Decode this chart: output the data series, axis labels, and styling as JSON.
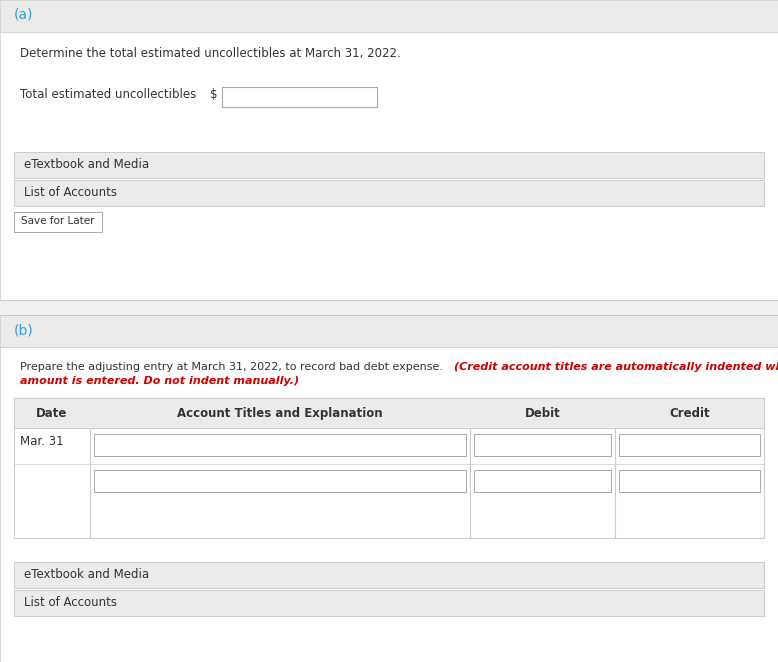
{
  "bg_color": "#f0f0f0",
  "white": "#ffffff",
  "light_gray": "#ebebeb",
  "border_color": "#cccccc",
  "dark_border": "#aaaaaa",
  "text_color": "#333333",
  "blue_color": "#3a9ad9",
  "red_color": "#cc0000",
  "section_a_label": "(a)",
  "section_b_label": "(b)",
  "part_a_instruction": "Determine the total estimated uncollectibles at March 31, 2022.",
  "part_a_field_label": "Total estimated uncollectibles",
  "dollar_sign": "$",
  "etextbook_label": "eTextbook and Media",
  "list_accounts_label": "List of Accounts",
  "save_later_label": "Save for Later",
  "part_b_instruction_black": "Prepare the adjusting entry at March 31, 2022, to record bad debt expense.",
  "part_b_instruction_red": "(Credit account titles are automatically indented when amount is entered. Do not indent manually.)",
  "part_b_red_line2": "amount is entered. Do not indent manually.)",
  "table_col_date": "Date",
  "table_col_account": "Account Titles and Explanation",
  "table_col_debit": "Debit",
  "table_col_credit": "Credit",
  "table_date_val": "Mar. 31",
  "fig_width": 7.78,
  "fig_height": 6.62,
  "dpi": 100
}
